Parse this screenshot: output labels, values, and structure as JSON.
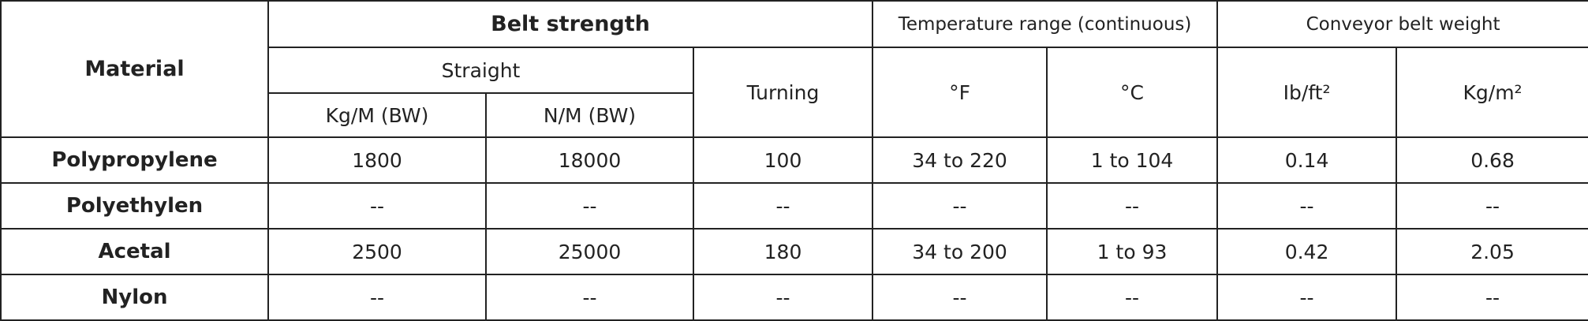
{
  "table": {
    "header": {
      "material": "Material",
      "belt_strength": "Belt strength",
      "temperature": "Temperature range (continuous)",
      "weight": "Conveyor belt weight",
      "straight": "Straight",
      "turning": "Turning",
      "kg_m": "Kg/M (BW)",
      "n_m": "N/M (BW)",
      "deg_f": "°F",
      "deg_c": "°C",
      "lb_ft2": "Ib/ft²",
      "kg_m2": "Kg/m²"
    },
    "rows": [
      [
        "Polypropylene",
        "1800",
        "18000",
        "100",
        "34 to 220",
        "1 to 104",
        "0.14",
        "0.68"
      ],
      [
        "Polyethylen",
        "--",
        "--",
        "--",
        "--",
        "--",
        "--",
        "--"
      ],
      [
        "Acetal",
        "2500",
        "25000",
        "180",
        "34 to 200",
        "1 to 93",
        "0.42",
        "2.05"
      ],
      [
        "Nylon",
        "--",
        "--",
        "--",
        "--",
        "--",
        "--",
        "--"
      ]
    ]
  }
}
